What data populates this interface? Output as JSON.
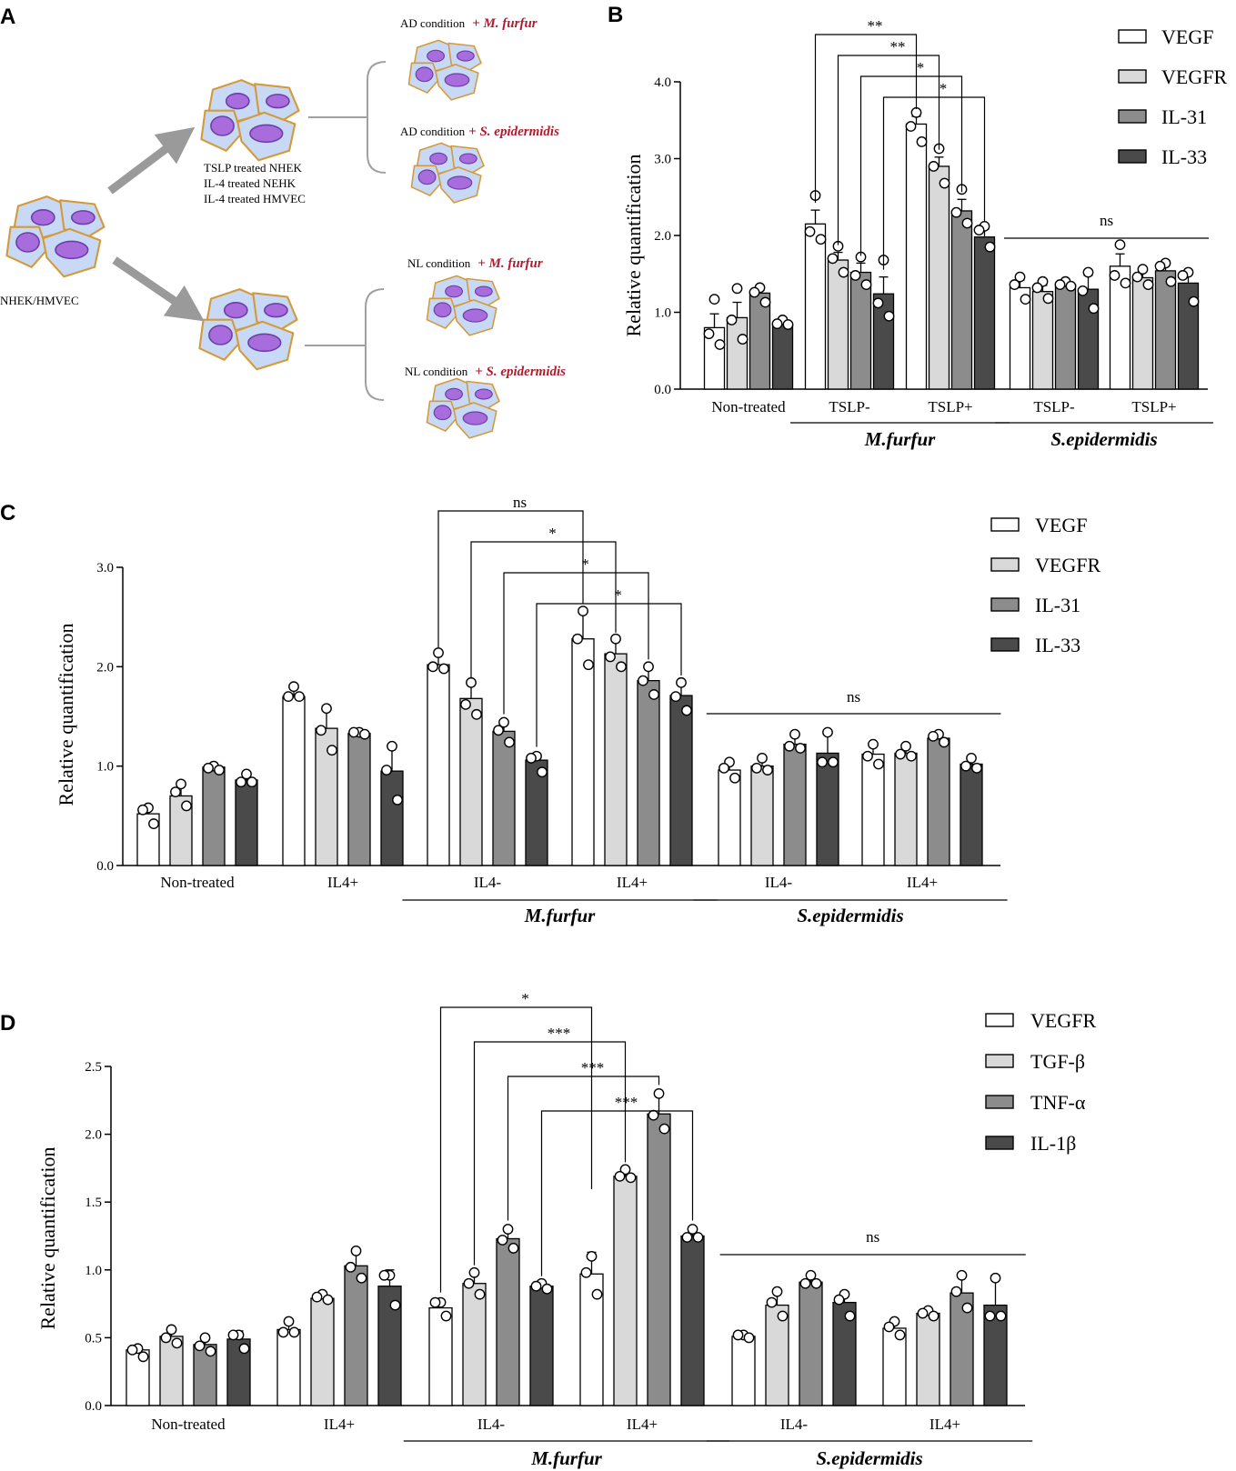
{
  "panel_a": {
    "letter": "A",
    "source_label": "NHEK/HMVEC",
    "treated_lines": [
      "TSLP treated NHEK",
      "IL-4 treated NEHK",
      "IL-4 treated HMVEC"
    ],
    "conditions": [
      {
        "prefix": "AD condition",
        "organism": "+ M. furfur"
      },
      {
        "prefix": "AD condition",
        "organism": "+ S. epidermidis"
      },
      {
        "prefix": "NL condition",
        "organism": "+ M. furfur"
      },
      {
        "prefix": "NL condition",
        "organism": "+ S. epidermidis"
      }
    ],
    "colors": {
      "cell_fill": "#c7d9f4",
      "cell_border": "#d49a3a",
      "nucleus": "#a86cdc",
      "arrow": "#9a9a9a",
      "organism_text": "#b01c2e"
    }
  },
  "chart_data": [
    {
      "panel": "B",
      "type": "bar",
      "ylabel": "Relative quantification",
      "ylim": [
        0,
        4.0
      ],
      "yticks": [
        "0.0",
        "1.0",
        "2.0",
        "3.0",
        "4.0"
      ],
      "categories": [
        "Non-treated",
        "TSLP-",
        "TSLP+",
        "TSLP-",
        "TSLP+"
      ],
      "groups": [
        {
          "label": "M.furfur",
          "from": 1,
          "to": 2
        },
        {
          "label": "S.epidermidis",
          "from": 3,
          "to": 4
        }
      ],
      "legend": [
        "VEGF",
        "VEGFR",
        "IL-31",
        "IL-33"
      ],
      "series_colors": [
        "#ffffff",
        "#d9d9d9",
        "#8c8c8c",
        "#4a4a4a"
      ],
      "series": [
        {
          "name": "VEGF",
          "values": [
            0.8,
            2.15,
            3.45,
            1.32,
            1.6
          ],
          "errors": [
            0.18,
            0.18,
            0.1,
            0.1,
            0.16
          ],
          "points": [
            [
              1.17,
              0.72,
              0.58
            ],
            [
              2.52,
              2.05,
              1.95
            ],
            [
              3.6,
              3.42,
              3.22
            ],
            [
              1.46,
              1.36,
              1.17
            ],
            [
              1.88,
              1.48,
              1.38
            ]
          ]
        },
        {
          "name": "VEGFR",
          "values": [
            0.93,
            1.68,
            2.9,
            1.27,
            1.45
          ],
          "errors": [
            0.2,
            0.1,
            0.12,
            0.08,
            0.08
          ],
          "points": [
            [
              1.31,
              0.9,
              0.65
            ],
            [
              1.86,
              1.7,
              1.52
            ],
            [
              3.13,
              2.9,
              2.68
            ],
            [
              1.4,
              1.32,
              1.18
            ],
            [
              1.56,
              1.46,
              1.36
            ]
          ]
        },
        {
          "name": "IL-31",
          "values": [
            1.25,
            1.52,
            2.32,
            1.36,
            1.54
          ],
          "errors": [
            0.08,
            0.12,
            0.15,
            0.04,
            0.08
          ],
          "points": [
            [
              1.32,
              1.26,
              1.13
            ],
            [
              1.72,
              1.48,
              1.36
            ],
            [
              2.6,
              2.3,
              2.16
            ],
            [
              1.4,
              1.36,
              1.34
            ],
            [
              1.64,
              1.6,
              1.4
            ]
          ]
        },
        {
          "name": "IL-33",
          "values": [
            0.84,
            1.24,
            1.98,
            1.3,
            1.38
          ],
          "errors": [
            0.06,
            0.22,
            0.1,
            0.18,
            0.12
          ],
          "points": [
            [
              0.9,
              0.85,
              0.84
            ],
            [
              1.68,
              1.12,
              0.95
            ],
            [
              2.12,
              2.07,
              1.85
            ],
            [
              1.52,
              1.28,
              1.05
            ],
            [
              1.52,
              1.48,
              1.14
            ]
          ]
        }
      ],
      "significance": [
        {
          "from_series": 0,
          "to_series": 0,
          "label": "**"
        },
        {
          "from_series": 1,
          "to_series": 1,
          "label": "**"
        },
        {
          "from_series": 2,
          "to_series": 2,
          "label": "*"
        },
        {
          "from_series": 3,
          "to_series": 3,
          "label": "*"
        }
      ],
      "group_ns": "ns"
    },
    {
      "panel": "C",
      "type": "bar",
      "ylabel": "Relative quantification",
      "ylim": [
        0,
        3.0
      ],
      "yticks": [
        "0.0",
        "1.0",
        "2.0",
        "3.0"
      ],
      "categories": [
        "Non-treated",
        "IL4+",
        "IL4-",
        "IL4+",
        "IL4-",
        "IL4+"
      ],
      "groups": [
        {
          "label": "M.furfur",
          "from": 2,
          "to": 3
        },
        {
          "label": "S.epidermidis",
          "from": 4,
          "to": 5
        }
      ],
      "legend": [
        "VEGF",
        "VEGFR",
        "IL-31",
        "IL-33"
      ],
      "series_colors": [
        "#ffffff",
        "#d9d9d9",
        "#8c8c8c",
        "#4a4a4a"
      ],
      "series": [
        {
          "name": "VEGF",
          "values": [
            0.52,
            1.7,
            2.02,
            2.28,
            0.96,
            1.12
          ],
          "errors": [
            0.06,
            0.1,
            0.1,
            0.28,
            0.08,
            0.1
          ],
          "points": [
            [
              0.58,
              0.56,
              0.42
            ],
            [
              1.8,
              1.7,
              1.7
            ],
            [
              2.14,
              2.0,
              1.98
            ],
            [
              2.56,
              2.28,
              2.02
            ],
            [
              1.04,
              0.98,
              0.88
            ],
            [
              1.22,
              1.1,
              1.02
            ]
          ]
        },
        {
          "name": "VEGFR",
          "values": [
            0.7,
            1.38,
            1.68,
            2.13,
            1.0,
            1.13
          ],
          "errors": [
            0.12,
            0.22,
            0.14,
            0.14,
            0.08,
            0.06
          ],
          "points": [
            [
              0.82,
              0.74,
              0.6
            ],
            [
              1.58,
              1.36,
              1.16
            ],
            [
              1.84,
              1.62,
              1.52
            ],
            [
              2.28,
              2.1,
              2.0
            ],
            [
              1.08,
              0.98,
              0.96
            ],
            [
              1.2,
              1.12,
              1.1
            ]
          ]
        },
        {
          "name": "IL-31",
          "values": [
            0.99,
            1.33,
            1.35,
            1.86,
            1.22,
            1.28
          ],
          "errors": [
            0.04,
            0.02,
            0.1,
            0.14,
            0.08,
            0.05
          ],
          "points": [
            [
              1.0,
              0.98,
              0.96
            ],
            [
              1.34,
              1.34,
              1.32
            ],
            [
              1.44,
              1.36,
              1.24
            ],
            [
              2.0,
              1.86,
              1.72
            ],
            [
              1.32,
              1.2,
              1.18
            ],
            [
              1.32,
              1.3,
              1.24
            ]
          ]
        },
        {
          "name": "IL-33",
          "values": [
            0.86,
            0.95,
            1.06,
            1.71,
            1.13,
            1.02
          ],
          "errors": [
            0.06,
            0.26,
            0.06,
            0.13,
            0.22,
            0.06
          ],
          "points": [
            [
              0.92,
              0.84,
              0.84
            ],
            [
              1.2,
              0.96,
              0.66
            ],
            [
              1.1,
              1.08,
              0.94
            ],
            [
              1.84,
              1.7,
              1.56
            ],
            [
              1.34,
              1.04,
              1.04
            ],
            [
              1.08,
              1.0,
              0.98
            ]
          ]
        }
      ],
      "significance": [
        {
          "from_series": 0,
          "to_series": 0,
          "label": "ns"
        },
        {
          "from_series": 1,
          "to_series": 1,
          "label": "*"
        },
        {
          "from_series": 2,
          "to_series": 2,
          "label": "*"
        },
        {
          "from_series": 3,
          "to_series": 3,
          "label": "*"
        }
      ],
      "group_ns": "ns"
    },
    {
      "panel": "D",
      "type": "bar",
      "ylabel": "Relative quantification",
      "ylim": [
        0,
        2.5
      ],
      "yticks": [
        "0.0",
        "0.5",
        "1.0",
        "1.5",
        "2.0",
        "2.5"
      ],
      "categories": [
        "Non-treated",
        "IL4+",
        "IL4-",
        "IL4+",
        "IL4-",
        "IL4+"
      ],
      "groups": [
        {
          "label": "M.furfur",
          "from": 2,
          "to": 3
        },
        {
          "label": "S.epidermidis",
          "from": 4,
          "to": 5
        }
      ],
      "legend": [
        "VEGFR",
        "TGF-β",
        "TNF-α",
        "IL-1β"
      ],
      "series_colors": [
        "#ffffff",
        "#d9d9d9",
        "#8c8c8c",
        "#4a4a4a"
      ],
      "series": [
        {
          "name": "VEGFR",
          "values": [
            0.41,
            0.56,
            0.72,
            0.97,
            0.51,
            0.57
          ],
          "errors": [
            0.02,
            0.05,
            0.06,
            0.16,
            0.02,
            0.05
          ],
          "points": [
            [
              0.42,
              0.41,
              0.36
            ],
            [
              0.62,
              0.54,
              0.54
            ],
            [
              0.76,
              0.76,
              0.66
            ],
            [
              1.1,
              0.98,
              0.82
            ],
            [
              0.52,
              0.52,
              0.5
            ],
            [
              0.62,
              0.58,
              0.52
            ]
          ]
        },
        {
          "name": "TGF-β",
          "values": [
            0.51,
            0.79,
            0.9,
            1.69,
            0.74,
            0.68
          ],
          "errors": [
            0.06,
            0.03,
            0.08,
            0.05,
            0.1,
            0.03
          ],
          "points": [
            [
              0.56,
              0.5,
              0.46
            ],
            [
              0.82,
              0.8,
              0.78
            ],
            [
              0.98,
              0.9,
              0.82
            ],
            [
              1.74,
              1.69,
              1.68
            ],
            [
              0.84,
              0.76,
              0.66
            ],
            [
              0.7,
              0.68,
              0.66
            ]
          ]
        },
        {
          "name": "TNF-α",
          "values": [
            0.45,
            1.03,
            1.23,
            2.15,
            0.91,
            0.83
          ],
          "errors": [
            0.06,
            0.12,
            0.08,
            0.16,
            0.06,
            0.14
          ],
          "points": [
            [
              0.5,
              0.44,
              0.4
            ],
            [
              1.14,
              1.02,
              0.94
            ],
            [
              1.3,
              1.22,
              1.16
            ],
            [
              2.3,
              2.14,
              2.04
            ],
            [
              0.96,
              0.9,
              0.9
            ],
            [
              0.96,
              0.84,
              0.72
            ]
          ]
        },
        {
          "name": "IL-1β",
          "values": [
            0.49,
            0.88,
            0.88,
            1.25,
            0.76,
            0.74
          ],
          "errors": [
            0.06,
            0.12,
            0.02,
            0.06,
            0.08,
            0.22
          ],
          "points": [
            [
              0.52,
              0.52,
              0.42
            ],
            [
              0.96,
              0.96,
              0.74
            ],
            [
              0.9,
              0.88,
              0.86
            ],
            [
              1.3,
              1.24,
              1.24
            ],
            [
              0.82,
              0.78,
              0.66
            ],
            [
              0.94,
              0.66,
              0.66
            ]
          ]
        }
      ],
      "significance": [
        {
          "from_series": 0,
          "to_series": 0,
          "label": "*"
        },
        {
          "from_series": 1,
          "to_series": 1,
          "label": "***"
        },
        {
          "from_series": 2,
          "to_series": 2,
          "label": "***"
        },
        {
          "from_series": 3,
          "to_series": 3,
          "label": "***"
        }
      ],
      "group_ns": "ns"
    }
  ]
}
